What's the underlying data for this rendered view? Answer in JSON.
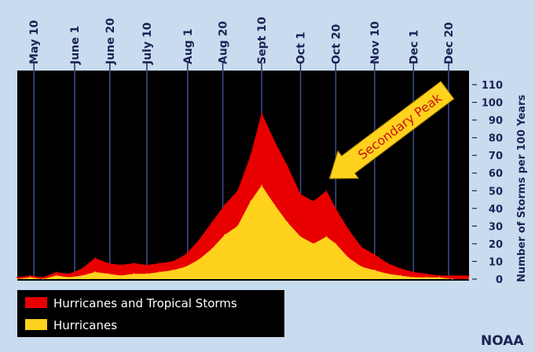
{
  "chart_data": {
    "type": "area",
    "ylabel": "Number of Storms per 100 Years",
    "ylim": [
      0,
      110
    ],
    "yticks": [
      0,
      10,
      20,
      30,
      40,
      50,
      60,
      70,
      80,
      90,
      100,
      110
    ],
    "x_range": [
      "May 1",
      "Dec 31"
    ],
    "date_labels": [
      {
        "label": "May 10",
        "date": "2000-05-10"
      },
      {
        "label": "June 1",
        "date": "2000-06-01"
      },
      {
        "label": "June 20",
        "date": "2000-06-20"
      },
      {
        "label": "July 10",
        "date": "2000-07-10"
      },
      {
        "label": "Aug 1",
        "date": "2000-08-01"
      },
      {
        "label": "Aug 20",
        "date": "2000-08-20"
      },
      {
        "label": "Sept 10",
        "date": "2000-09-10"
      },
      {
        "label": "Oct 1",
        "date": "2000-10-01"
      },
      {
        "label": "Oct 20",
        "date": "2000-10-20"
      },
      {
        "label": "Nov 10",
        "date": "2000-11-10"
      },
      {
        "label": "Dec 1",
        "date": "2000-12-01"
      },
      {
        "label": "Dec 20",
        "date": "2000-12-20"
      }
    ],
    "series": [
      {
        "name": "Hurricanes and Tropical Storms",
        "color": "#e80000",
        "x": [
          "2000-05-01",
          "2000-05-08",
          "2000-05-15",
          "2000-05-22",
          "2000-05-29",
          "2000-06-05",
          "2000-06-12",
          "2000-06-19",
          "2000-06-26",
          "2000-07-03",
          "2000-07-10",
          "2000-07-17",
          "2000-07-24",
          "2000-07-31",
          "2000-08-07",
          "2000-08-14",
          "2000-08-21",
          "2000-08-28",
          "2000-09-04",
          "2000-09-10",
          "2000-09-17",
          "2000-09-24",
          "2000-10-01",
          "2000-10-08",
          "2000-10-15",
          "2000-10-20",
          "2000-10-27",
          "2000-11-03",
          "2000-11-10",
          "2000-11-17",
          "2000-11-24",
          "2000-12-01",
          "2000-12-08",
          "2000-12-15",
          "2000-12-22",
          "2000-12-31"
        ],
        "values": [
          1,
          2,
          1,
          4,
          3,
          6,
          12,
          9,
          8,
          9,
          8,
          9,
          10,
          14,
          22,
          32,
          42,
          50,
          70,
          94,
          78,
          64,
          48,
          44,
          50,
          40,
          28,
          18,
          14,
          9,
          6,
          4,
          3,
          2,
          2,
          2
        ]
      },
      {
        "name": "Hurricanes",
        "color": "#ffd21e",
        "x": [
          "2000-05-01",
          "2000-05-08",
          "2000-05-15",
          "2000-05-22",
          "2000-05-29",
          "2000-06-05",
          "2000-06-12",
          "2000-06-19",
          "2000-06-26",
          "2000-07-03",
          "2000-07-10",
          "2000-07-17",
          "2000-07-24",
          "2000-07-31",
          "2000-08-07",
          "2000-08-14",
          "2000-08-21",
          "2000-08-28",
          "2000-09-04",
          "2000-09-10",
          "2000-09-17",
          "2000-09-24",
          "2000-10-01",
          "2000-10-08",
          "2000-10-15",
          "2000-10-20",
          "2000-10-27",
          "2000-11-03",
          "2000-11-10",
          "2000-11-17",
          "2000-11-24",
          "2000-12-01",
          "2000-12-08",
          "2000-12-15",
          "2000-12-22",
          "2000-12-31"
        ],
        "values": [
          0,
          1,
          0,
          2,
          1,
          2,
          4,
          3,
          2,
          3,
          3,
          4,
          5,
          7,
          11,
          17,
          25,
          30,
          44,
          53,
          42,
          32,
          24,
          20,
          24,
          20,
          12,
          7,
          5,
          3,
          2,
          1,
          1,
          1,
          0,
          0
        ]
      }
    ],
    "annotation": {
      "text": "Secondary Peak",
      "points_to": "2000-10-20"
    },
    "legend": {
      "placement": "bottom-left"
    },
    "grid": {
      "vertical": true,
      "horizontal": false
    }
  },
  "credit": "NOAA",
  "colors": {
    "background": "#c9dbee",
    "plot": "#000000",
    "gridline": "#3a4a86",
    "text": "#1b2255",
    "arrow_fill": "#ffd21e",
    "annotation_text": "#c81212"
  }
}
